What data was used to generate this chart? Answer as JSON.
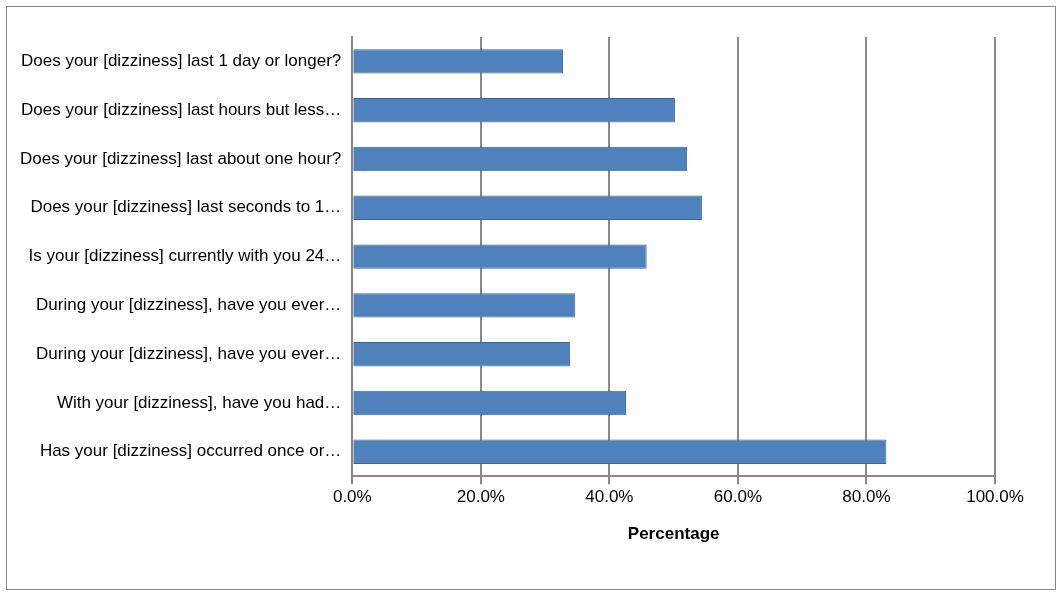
{
  "chart_data": {
    "type": "bar",
    "orientation": "horizontal",
    "xlabel": "Percentage",
    "categories": [
      "Does your [dizziness] last 1 day or longer?",
      "Does your [dizziness] last hours but less…",
      "Does your [dizziness] last about one hour?",
      "Does your [dizziness] last seconds to 1…",
      "Is your [dizziness] currently with you 24…",
      "During your [dizziness], have you ever…",
      "During your [dizziness], have you ever…",
      "With your [dizziness], have you had…",
      "Has your [dizziness] occurred once or…"
    ],
    "values": [
      32.8,
      50.2,
      52.1,
      54.4,
      45.8,
      34.7,
      33.9,
      42.6,
      83.1
    ],
    "color": "#4f81bd",
    "xlim": [
      0,
      100
    ],
    "xticks": [
      {
        "value": 0,
        "label": "0.0%"
      },
      {
        "value": 20,
        "label": "20.0%"
      },
      {
        "value": 40,
        "label": "40.0%"
      },
      {
        "value": 60,
        "label": "60.0%"
      },
      {
        "value": 80,
        "label": "80.0%"
      },
      {
        "value": 100,
        "label": "100.0%"
      }
    ],
    "grid": "x"
  }
}
